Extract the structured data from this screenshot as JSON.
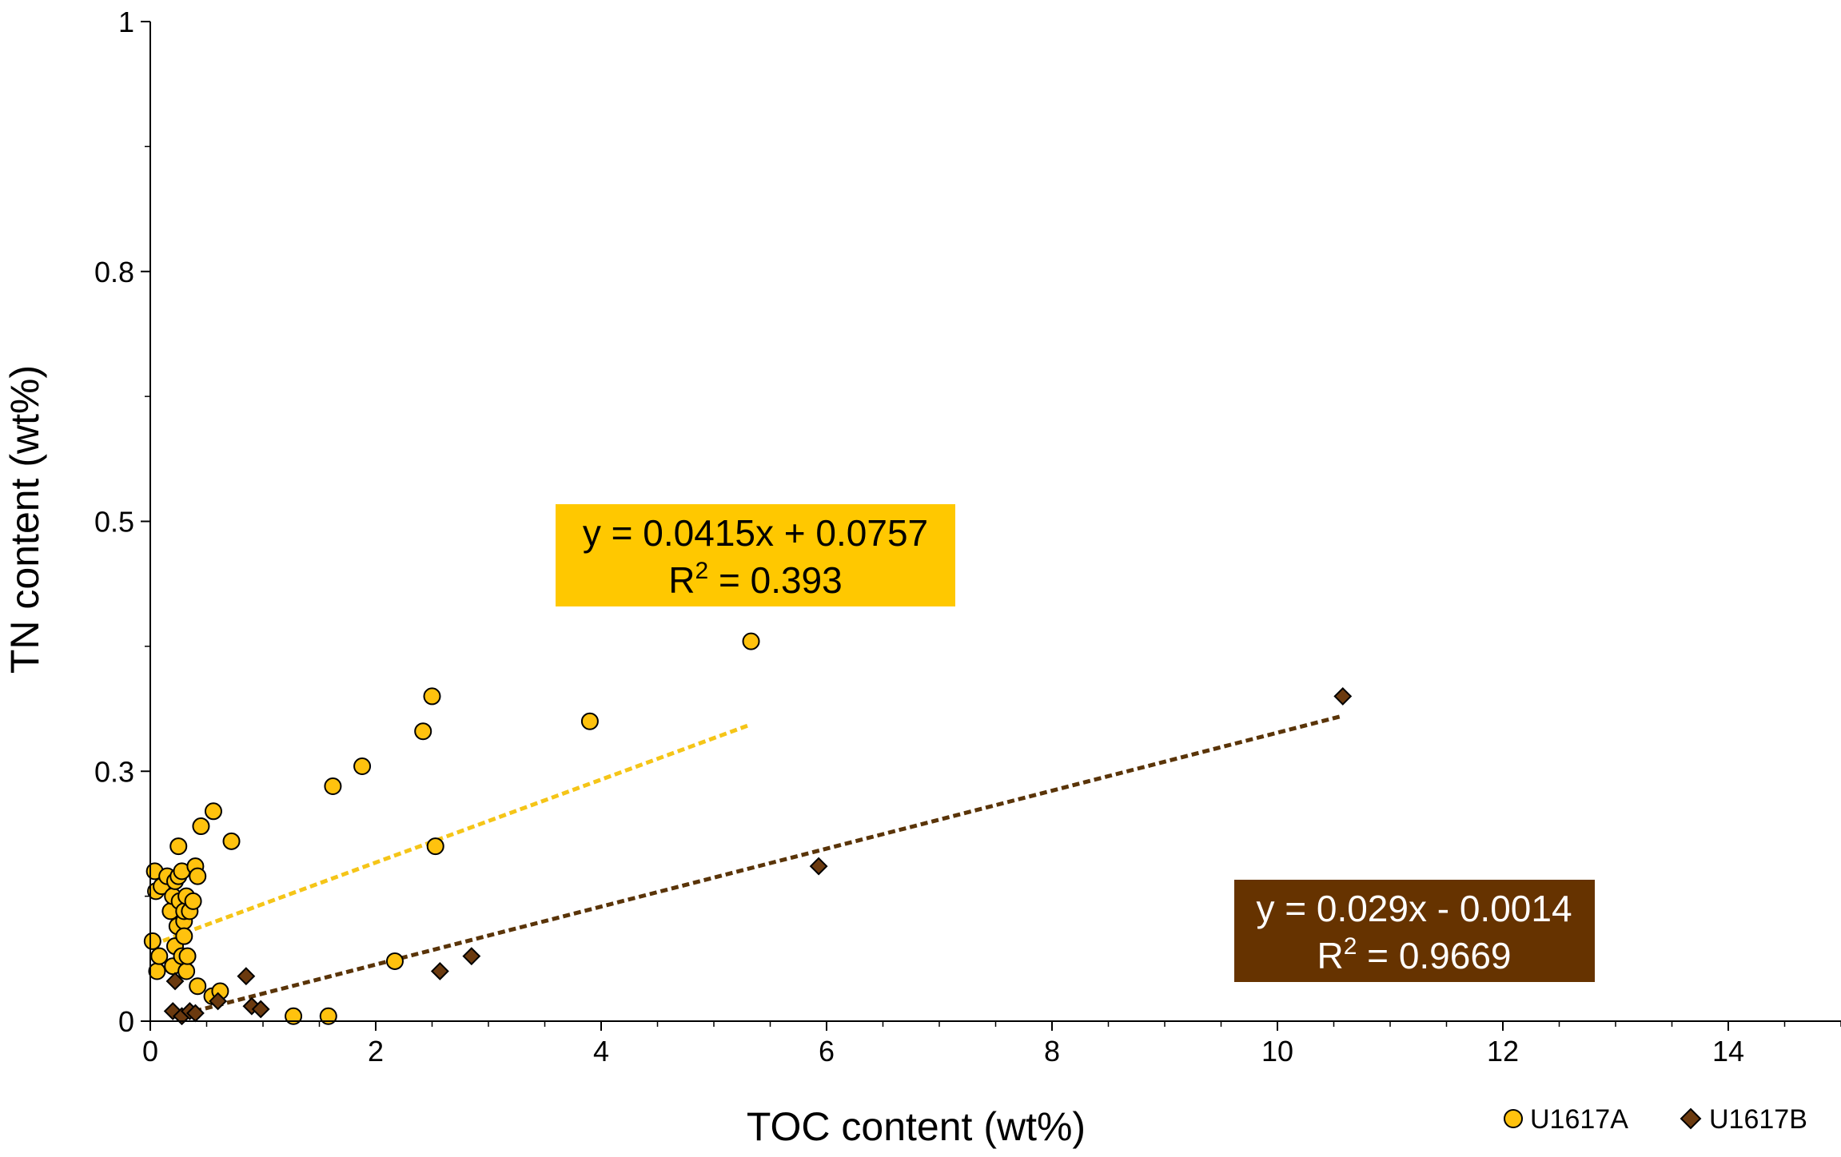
{
  "chart_data": {
    "type": "scatter",
    "xlabel": "TOC content (wt%)",
    "ylabel": "TN content (wt%)",
    "xlim": [
      0,
      15
    ],
    "ylim": [
      0,
      1
    ],
    "x_ticks": [
      0,
      2,
      4,
      6,
      8,
      10,
      12,
      14
    ],
    "x_tick_labels": [
      "0",
      "2",
      "4",
      "6",
      "8",
      "10",
      "12",
      "14"
    ],
    "y_ticks": [
      0,
      0.25,
      0.5,
      0.75,
      1
    ],
    "y_tick_labels": [
      "0",
      "0.3",
      "0.5",
      "0.8",
      "1"
    ],
    "grid": false,
    "legend_position": "bottom-right",
    "series": [
      {
        "name": "U1617A",
        "marker": "circle",
        "color": "#FFC20E",
        "edge_color": "#000000",
        "x": [
          0.02,
          0.04,
          0.05,
          0.06,
          0.08,
          0.1,
          0.15,
          0.18,
          0.2,
          0.2,
          0.22,
          0.22,
          0.24,
          0.25,
          0.25,
          0.26,
          0.28,
          0.28,
          0.3,
          0.3,
          0.3,
          0.32,
          0.32,
          0.33,
          0.35,
          0.38,
          0.4,
          0.42,
          0.42,
          0.45,
          0.55,
          0.56,
          0.62,
          0.72,
          1.27,
          1.58,
          1.62,
          1.88,
          2.17,
          2.42,
          2.5,
          2.53,
          3.9,
          5.33
        ],
        "y": [
          0.08,
          0.15,
          0.13,
          0.05,
          0.065,
          0.135,
          0.145,
          0.11,
          0.125,
          0.055,
          0.14,
          0.075,
          0.095,
          0.145,
          0.175,
          0.12,
          0.15,
          0.065,
          0.1,
          0.11,
          0.085,
          0.125,
          0.05,
          0.065,
          0.11,
          0.12,
          0.155,
          0.035,
          0.145,
          0.195,
          0.025,
          0.21,
          0.03,
          0.18,
          0.005,
          0.005,
          0.235,
          0.255,
          0.06,
          0.29,
          0.325,
          0.175,
          0.3,
          0.38
        ]
      },
      {
        "name": "U1617B",
        "marker": "diamond",
        "color": "#6B3A0F",
        "edge_color": "#000000",
        "x": [
          0.2,
          0.22,
          0.28,
          0.35,
          0.4,
          0.6,
          0.85,
          0.9,
          0.98,
          2.57,
          2.85,
          5.93,
          10.58
        ],
        "y": [
          0.01,
          0.04,
          0.005,
          0.01,
          0.008,
          0.02,
          0.045,
          0.015,
          0.012,
          0.05,
          0.065,
          0.155,
          0.325
        ]
      }
    ],
    "trendlines": [
      {
        "series": "U1617A",
        "color": "#F5C518",
        "x_range": [
          0.02,
          5.33
        ],
        "slope": 0.0415,
        "intercept": 0.0757,
        "equation_line1": "y = 0.0415x + 0.0757",
        "equation_line2": "R",
        "equation_sup": "2",
        "equation_line3": " = 0.393",
        "box_color": "#FFC800",
        "text_color": "#000000"
      },
      {
        "series": "U1617B",
        "color": "#5A3408",
        "x_range": [
          0.2,
          10.58
        ],
        "slope": 0.029,
        "intercept": -0.0014,
        "equation_line1": "y = 0.029x - 0.0014",
        "equation_line2": "R",
        "equation_sup": "2",
        "equation_line3": " = 0.9669",
        "box_color": "#663300",
        "text_color": "#FFFFFF"
      }
    ]
  }
}
